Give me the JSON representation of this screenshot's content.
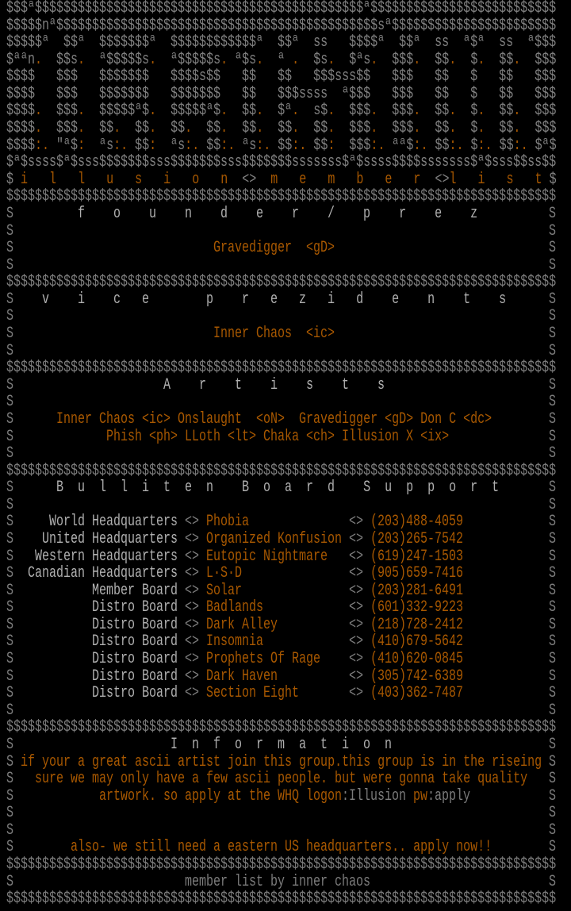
{
  "colors": {
    "background": "#000000",
    "frame": "#7c7c7c",
    "heading": "#b0b0b0",
    "accent": "#a85800"
  },
  "logo": {
    "lines": [
      "$$$ª$$$$$$$$$$$$$$$$$$$$$$$$$$$$$$$$$$$$$$$$$$$$$$ª$$$$$$$$$$$$$$$$$$$$$$$$$$",
      "$$$$$nª$$$$$$$$$$$$$$$$$$$$$$$$$$$$$$$$$$$$$$$$$$$$$sª$$$$$$$$$$$$$$$$$$$$$$$",
      "$$$$$ª  $$ª  $$$$$$$ª  $$$$$$$$$$$$ª  $$ª  ss   $$$$ª  $$ª  ss  ª$ª  ss  ª$$$",
      "$ªªn.  $$s.  ª$$$$$s.  ª$$$$$s. ª$s.  ª .  $s.  $ªs.  $$$.  $$.  $.  $$.  $$$",
      "$$$$   $$$   $$$$$$$   $$$$s$$   $$   $$   $$$sss$$   $$$   $$   $   $$   $$$",
      "$$$$   $$$   $$$$$$$   $$$$$$$   $$   $$$ssss  ª$$$   $$$   $$   $   $$   $$$",
      "$$$$.  $$$.  $$$$$ª$.  $$$$$ª$.  $$.  $ª.  s$.  $$$.  $$$.  $$.  $.  $$.  $$$",
      "$$$$.  $$$.  $$.  $$.  $$.  $$.  $$.  $$.  $$.  $$$.  $$$.  $$.  $.  $$.  $$$",
      "$$$$:. \"ª$:  ªs:. $$:  ªs:. $$:. ªs:. $$:. $$:  $$$:. ªª$:. $$:. $:. $$:. $ª$",
      "$ª$ssss$ª$sss$$$$$$$sss$$$$$$$sss$$$$$$$sssssss$ª$ssss$$$$sssssss$ª$sss$$ss$$"
    ]
  },
  "title": "$ i   l   l   u   s   i   o   n  <>  m   e   m   b   e   r  <>l   i   s   t $",
  "frame": {
    "divider": "$$$$$$$$$$$$$$$$$$$$$$$$$$$$$$$$$$$$$$$$$$$$$$$$$$$$$$$$$$$$$$$$$$$$$$$$$$$$$",
    "side": "S"
  },
  "founder": {
    "heading": "f    o    u    n    d    e    r    /    p    r    e    z",
    "member": "Gravedigger  <gD>"
  },
  "vice": {
    "heading": "v    i    c   e        p    r   e   z   i   d    e    n    t    s",
    "member": "Inner Chaos  <ic>"
  },
  "artists": {
    "heading": "A    r    t    i    s    t    s",
    "line1": "Inner Chaos <ic> Onslaught  <oN>  Gravedigger <gD> Don C <dc>",
    "line2": "Phish <ph> LLoth <lt> Chaka <ch> Illusion X <ix>"
  },
  "bbs": {
    "heading": "B  u  l  l  i  t  e  n    B  o  a  r  d    S  u  p  p  o  r  t",
    "separator": "<>",
    "boards": [
      {
        "role": "World Headquarters",
        "name": "Phobia",
        "phone": "(203)488-4059"
      },
      {
        "role": "United Headquarters",
        "name": "Organized Konfusion",
        "phone": "(203)265-7542"
      },
      {
        "role": "Western Headquarters",
        "name": "Eutopic Nightmare",
        "phone": "(619)247-1503"
      },
      {
        "role": "Canadian Headquarters",
        "name": "L·S·D",
        "phone": "(905)659-7416"
      },
      {
        "role": "Member Board",
        "name": "Solar",
        "phone": "(203)281-6491"
      },
      {
        "role": "Distro Board",
        "name": "Badlands",
        "phone": "(601)332-9223"
      },
      {
        "role": "Distro Board",
        "name": "Dark Alley",
        "phone": "(218)728-2412"
      },
      {
        "role": "Distro Board",
        "name": "Insomnia",
        "phone": "(410)679-5642"
      },
      {
        "role": "Distro Board",
        "name": "Prophets Of Rage",
        "phone": "(410)620-0845"
      },
      {
        "role": "Distro Board",
        "name": "Dark Haven",
        "phone": "(305)742-6389"
      },
      {
        "role": "Distro Board",
        "name": "Section Eight",
        "phone": "(403)362-7487"
      }
    ]
  },
  "info": {
    "heading": "I  n  f  o  r  m  a  t  i  o  n",
    "line1": "if your a great ascii artist join this group.this group is in the riseing",
    "line2": "sure we may only have a few ascii people. but were gonna take quality",
    "line3a": "artwork. so apply at the WHQ logon",
    "line3b": ":Illusion ",
    "line3c": "pw",
    "line3d": ":apply",
    "note": "also- we still need a eastern US headquarters.. apply now!!"
  },
  "footer": "member list by inner chaos"
}
